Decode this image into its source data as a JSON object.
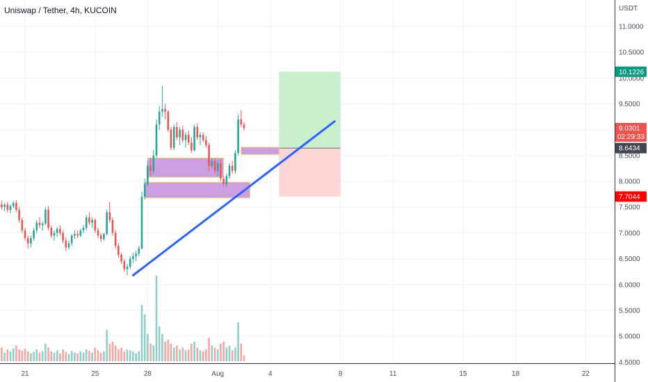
{
  "header": {
    "title": "Uniswap / Tether, 4h, KUCOIN"
  },
  "colors": {
    "up": "#26a69a",
    "down": "#ef5350",
    "vol_up": "#8fcfc7",
    "vol_down": "#f4a6a4",
    "zone": "#cd9fe0",
    "zone_border": "#e8d066",
    "trendline": "#2962ff",
    "target": "#c8edc9",
    "stop": "#fcd3d3",
    "grid": "#f0f3fa"
  },
  "chart_data": {
    "type": "candlestick",
    "quote": "USDT",
    "y_ticks": [
      "11.0000",
      "10.5000",
      "10.0000",
      "9.5000",
      "9.0000",
      "8.5000",
      "8.0000",
      "7.5000",
      "7.0000",
      "6.5000",
      "6.0000",
      "5.5000",
      "5.0000",
      "4.5000"
    ],
    "ylim": [
      4.45,
      11.35
    ],
    "x_ticks": [
      "21",
      "25",
      "28",
      "Aug",
      "4",
      "8",
      "11",
      "15",
      "18",
      "22"
    ],
    "x_tick_dates": [
      "2021-07-21",
      "2021-07-25",
      "2021-07-28",
      "2021-08-01",
      "2021-08-04",
      "2021-08-08",
      "2021-08-11",
      "2021-08-15",
      "2021-08-18",
      "2021-08-22"
    ],
    "price_labels": [
      {
        "label": "10.1226",
        "value": 10.1226,
        "color": "#089981"
      },
      {
        "label": "9.0301",
        "value": 9.0301,
        "color": "#ef5350",
        "countdown": "02:29:33"
      },
      {
        "label": "8.6434",
        "value": 8.6434,
        "color": "#434651"
      },
      {
        "label": "7.7044",
        "value": 7.7044,
        "color": "#ff0000"
      }
    ],
    "position": {
      "start": "2021-08-04T12:00",
      "end": "2021-08-08T00:00",
      "entry": 8.6434,
      "target": 10.1226,
      "stop": 7.7044
    },
    "trendline": {
      "from": [
        "2021-07-27T04:00",
        6.18
      ],
      "to": [
        "2021-08-07T16:00",
        9.16
      ]
    },
    "zones": [
      {
        "from": "2021-07-28T00:00",
        "to": "2021-08-01T08:00",
        "top": 8.45,
        "bottom": 8.08
      },
      {
        "from": "2021-07-27T20:00",
        "to": "2021-08-02T20:00",
        "top": 7.98,
        "bottom": 7.68
      },
      {
        "from": "2021-08-02T08:00",
        "to": "2021-08-04T12:00",
        "top": 8.66,
        "bottom": 8.52
      }
    ],
    "start": "2021-07-19T12:00",
    "interval_hours": 4,
    "candles": [
      [
        7.6,
        7.68,
        7.5,
        7.55
      ],
      [
        7.55,
        7.62,
        7.45,
        7.5
      ],
      [
        7.5,
        7.58,
        7.42,
        7.55
      ],
      [
        7.55,
        7.6,
        7.4,
        7.45
      ],
      [
        7.45,
        7.55,
        7.38,
        7.52
      ],
      [
        7.52,
        7.62,
        7.48,
        7.58
      ],
      [
        7.58,
        7.64,
        7.4,
        7.45
      ],
      [
        7.45,
        7.5,
        7.2,
        7.25
      ],
      [
        7.25,
        7.3,
        7.0,
        7.05
      ],
      [
        7.05,
        7.1,
        6.85,
        6.9
      ],
      [
        6.9,
        6.95,
        6.7,
        6.8
      ],
      [
        6.8,
        6.95,
        6.72,
        6.9
      ],
      [
        6.9,
        7.1,
        6.85,
        7.05
      ],
      [
        7.05,
        7.25,
        7.0,
        7.2
      ],
      [
        7.2,
        7.3,
        7.1,
        7.15
      ],
      [
        7.15,
        7.22,
        7.05,
        7.18
      ],
      [
        7.18,
        7.5,
        7.15,
        7.45
      ],
      [
        7.45,
        7.52,
        7.05,
        7.1
      ],
      [
        7.1,
        7.15,
        6.9,
        6.95
      ],
      [
        6.95,
        7.05,
        6.85,
        7.0
      ],
      [
        7.0,
        7.12,
        6.92,
        7.08
      ],
      [
        7.08,
        7.15,
        6.95,
        7.0
      ],
      [
        7.0,
        7.05,
        6.8,
        6.85
      ],
      [
        6.85,
        6.92,
        6.65,
        6.72
      ],
      [
        6.72,
        6.85,
        6.68,
        6.8
      ],
      [
        6.8,
        6.98,
        6.75,
        6.95
      ],
      [
        6.95,
        7.05,
        6.88,
        6.98
      ],
      [
        6.98,
        7.05,
        6.9,
        6.95
      ],
      [
        6.95,
        7.08,
        6.92,
        7.05
      ],
      [
        7.05,
        7.15,
        7.0,
        7.1
      ],
      [
        7.1,
        7.35,
        7.05,
        7.3
      ],
      [
        7.3,
        7.4,
        7.15,
        7.2
      ],
      [
        7.2,
        7.3,
        7.1,
        7.25
      ],
      [
        7.25,
        7.28,
        7.0,
        7.05
      ],
      [
        7.05,
        7.1,
        6.9,
        6.95
      ],
      [
        6.95,
        7.0,
        6.82,
        6.88
      ],
      [
        6.88,
        7.0,
        6.85,
        6.98
      ],
      [
        6.98,
        7.45,
        6.95,
        7.4
      ],
      [
        7.4,
        7.6,
        7.2,
        7.25
      ],
      [
        7.25,
        7.3,
        6.95,
        7.0
      ],
      [
        7.0,
        7.05,
        6.7,
        6.75
      ],
      [
        6.75,
        6.8,
        6.52,
        6.58
      ],
      [
        6.58,
        6.62,
        6.4,
        6.45
      ],
      [
        6.45,
        6.5,
        6.25,
        6.3
      ],
      [
        6.3,
        6.4,
        6.18,
        6.35
      ],
      [
        6.35,
        6.55,
        6.3,
        6.5
      ],
      [
        6.5,
        6.62,
        6.42,
        6.55
      ],
      [
        6.55,
        6.65,
        6.45,
        6.6
      ],
      [
        6.6,
        6.75,
        6.55,
        6.7
      ],
      [
        6.7,
        7.8,
        6.68,
        7.7
      ],
      [
        7.7,
        8.05,
        7.65,
        7.95
      ],
      [
        7.95,
        8.4,
        7.9,
        8.3
      ],
      [
        8.3,
        8.45,
        8.1,
        8.2
      ],
      [
        8.2,
        8.6,
        8.15,
        8.5
      ],
      [
        8.5,
        9.2,
        8.45,
        9.1
      ],
      [
        9.1,
        9.45,
        9.0,
        9.35
      ],
      [
        9.35,
        9.85,
        9.25,
        9.4
      ],
      [
        9.4,
        9.5,
        9.2,
        9.35
      ],
      [
        9.35,
        9.38,
        8.95,
        9.0
      ],
      [
        9.0,
        9.05,
        8.6,
        8.65
      ],
      [
        8.65,
        9.1,
        8.6,
        9.05
      ],
      [
        9.05,
        9.15,
        8.8,
        8.85
      ],
      [
        8.85,
        9.05,
        8.7,
        9.0
      ],
      [
        9.0,
        9.08,
        8.75,
        8.8
      ],
      [
        8.8,
        8.95,
        8.65,
        8.9
      ],
      [
        8.9,
        8.98,
        8.7,
        8.75
      ],
      [
        8.75,
        8.85,
        8.55,
        8.6
      ],
      [
        8.6,
        9.1,
        8.58,
        9.05
      ],
      [
        9.05,
        9.12,
        8.8,
        8.85
      ],
      [
        8.85,
        8.95,
        8.7,
        8.9
      ],
      [
        8.9,
        8.95,
        8.75,
        8.8
      ],
      [
        8.8,
        8.88,
        8.65,
        8.7
      ],
      [
        8.7,
        8.75,
        8.2,
        8.3
      ],
      [
        8.3,
        8.45,
        8.25,
        8.4
      ],
      [
        8.4,
        8.45,
        8.15,
        8.2
      ],
      [
        8.2,
        8.4,
        8.1,
        8.35
      ],
      [
        8.35,
        8.42,
        8.0,
        8.05
      ],
      [
        8.05,
        8.1,
        7.9,
        7.95
      ],
      [
        7.95,
        8.15,
        7.9,
        8.1
      ],
      [
        8.1,
        8.35,
        8.05,
        8.3
      ],
      [
        8.3,
        8.4,
        8.15,
        8.2
      ],
      [
        8.2,
        8.6,
        8.15,
        8.55
      ],
      [
        8.55,
        9.3,
        8.5,
        9.2
      ],
      [
        9.2,
        9.38,
        9.05,
        9.1
      ],
      [
        9.1,
        9.15,
        8.98,
        9.03
      ]
    ],
    "volumes": [
      0.28,
      0.35,
      0.22,
      0.3,
      0.25,
      0.33,
      0.4,
      0.3,
      0.27,
      0.32,
      0.25,
      0.2,
      0.24,
      0.3,
      0.22,
      0.26,
      0.45,
      0.35,
      0.25,
      0.22,
      0.28,
      0.2,
      0.3,
      0.24,
      0.18,
      0.26,
      0.22,
      0.2,
      0.25,
      0.22,
      0.3,
      0.26,
      0.22,
      0.35,
      0.28,
      0.22,
      0.25,
      0.8,
      0.45,
      0.5,
      0.4,
      0.3,
      0.35,
      0.25,
      0.3,
      0.28,
      0.25,
      0.2,
      0.25,
      1.45,
      1.2,
      0.7,
      0.45,
      0.4,
      2.2,
      0.9,
      0.7,
      0.5,
      0.55,
      0.45,
      0.35,
      0.4,
      0.3,
      0.35,
      0.28,
      0.3,
      0.45,
      0.5,
      0.35,
      0.28,
      0.25,
      0.3,
      0.6,
      0.4,
      0.35,
      0.3,
      0.45,
      0.5,
      0.35,
      0.4,
      0.28,
      0.35,
      1.0,
      0.45,
      0.15
    ]
  }
}
